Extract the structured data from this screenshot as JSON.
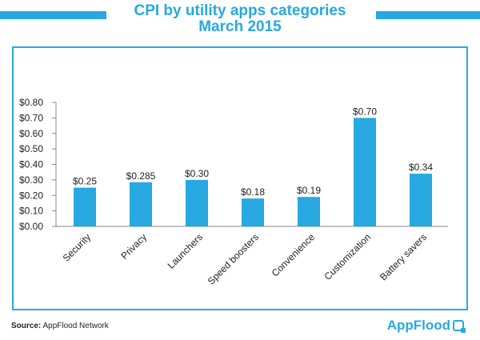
{
  "title_line1": "CPI by utility apps categories",
  "title_line2": "March 2015",
  "source_label": "Source:",
  "source_text": "AppFlood Network",
  "logo_text": "AppFlood",
  "colors": {
    "accent": "#27a8e0",
    "bar": "#27a8e0",
    "text": "#222222"
  },
  "chart_data": {
    "type": "bar",
    "title": "CPI by utility apps categories March 2015",
    "categories": [
      "Security",
      "Privacy",
      "Launchers",
      "Speed boosters",
      "Convenience",
      "Customization",
      "Battery savers"
    ],
    "values": [
      0.25,
      0.285,
      0.3,
      0.18,
      0.19,
      0.7,
      0.34
    ],
    "data_labels": [
      "$0.25",
      "$0.285",
      "$0.30",
      "$0.18",
      "$0.19",
      "$0.70",
      "$0.34"
    ],
    "y_ticks": [
      0,
      0.1,
      0.2,
      0.3,
      0.4,
      0.5,
      0.6,
      0.7,
      0.8
    ],
    "y_tick_labels": [
      "$0.00",
      "$0.10",
      "$0.20",
      "$0.30",
      "$0.40",
      "$0.50",
      "$0.60",
      "$0.70",
      "$0.80"
    ],
    "ylim": [
      0,
      0.8
    ],
    "xlabel": "",
    "ylabel": "",
    "grid": false,
    "legend": "none"
  }
}
